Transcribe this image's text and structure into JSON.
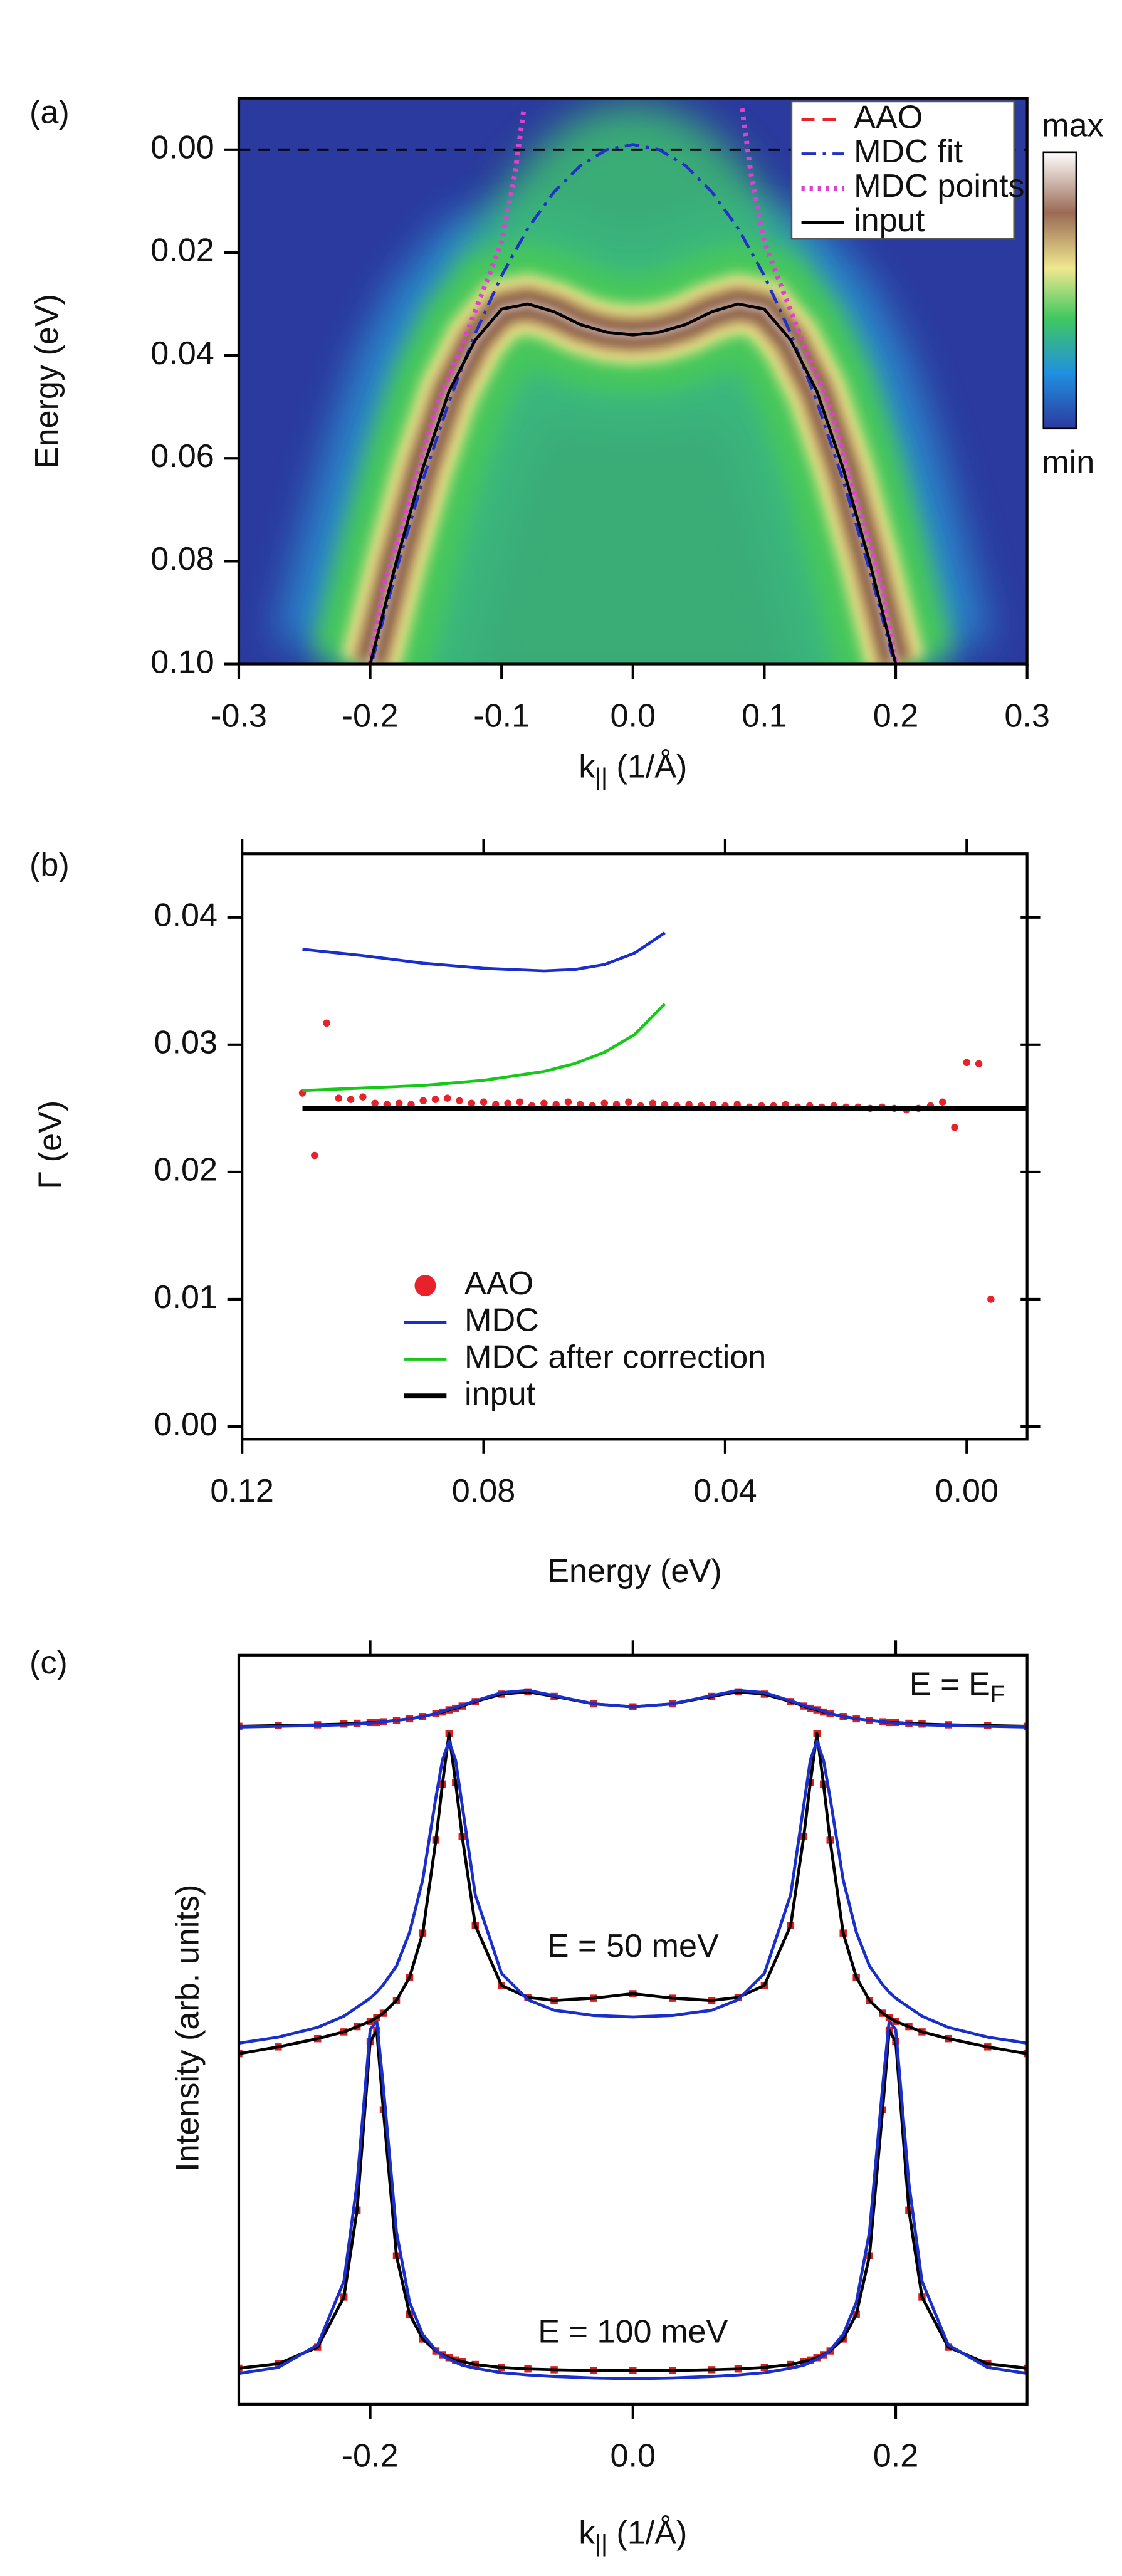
{
  "chart_data": [
    {
      "type": "line",
      "panel_label": "(a)",
      "xlabel": {
        "text": "k",
        "sub": "||",
        "suffix": " (1/Å)"
      },
      "ylabel": "Energy (eV)",
      "xlim": [
        -0.3,
        0.3
      ],
      "xticks": [
        -0.3,
        -0.2,
        -0.1,
        {
          "value": 0,
          "label": "0.0"
        },
        0.1,
        0.2,
        0.3
      ],
      "ylim": [
        0.1,
        -0.01
      ],
      "yticks": [
        {
          "value": 0,
          "label": "0.00"
        },
        0.02,
        0.04,
        0.06,
        0.08,
        {
          "value": 0.1,
          "label": "0.10"
        }
      ],
      "fermi_line": true,
      "heatmap": true,
      "colorbar": {
        "max": "max",
        "min": "min"
      },
      "legend": "upper right",
      "series": [
        {
          "name": "AAO",
          "color": "#e8222a",
          "dash": "dashed",
          "x": [
            -0.2,
            -0.18,
            -0.16,
            -0.14,
            -0.12,
            -0.1,
            -0.08,
            -0.06,
            -0.04,
            -0.02,
            0,
            0.02,
            0.04,
            0.06,
            0.08,
            0.1,
            0.12,
            0.14,
            0.16,
            0.18,
            0.2
          ],
          "values": [
            0.1,
            0.08,
            0.062,
            0.047,
            0.037,
            0.031,
            0.03,
            0.0315,
            0.034,
            0.0355,
            0.036,
            0.0355,
            0.034,
            0.0315,
            0.03,
            0.031,
            0.037,
            0.047,
            0.062,
            0.08,
            0.1
          ]
        },
        {
          "name": "MDC fit",
          "color": "#2030c8",
          "dash": "dashdot",
          "x": [
            -0.198,
            -0.18,
            -0.16,
            -0.14,
            -0.12,
            -0.1,
            -0.08,
            -0.06,
            -0.04,
            -0.02,
            0,
            0.02,
            0.04,
            0.06,
            0.08,
            0.1,
            0.12,
            0.14,
            0.16,
            0.18,
            0.198
          ],
          "values": [
            0.099,
            0.0816,
            0.0643,
            0.049,
            0.0357,
            0.0245,
            0.0153,
            0.0082,
            0.0031,
            0.0,
            -0.001,
            0.0,
            0.0031,
            0.0082,
            0.0153,
            0.0245,
            0.0357,
            0.049,
            0.0643,
            0.0816,
            0.099
          ]
        },
        {
          "name": "MDC points",
          "color": "#e040d0",
          "dash": "dotted",
          "x": [
            -0.2,
            -0.19,
            -0.17,
            -0.15,
            -0.13,
            -0.115,
            -0.1,
            -0.09,
            -0.083,
            null,
            0.083,
            0.09,
            0.1,
            0.115,
            0.13,
            0.15,
            0.17,
            0.19,
            0.2
          ],
          "values": [
            0.1,
            0.085,
            0.068,
            0.05,
            0.038,
            0.028,
            0.018,
            0.005,
            -0.008,
            null,
            -0.008,
            0.005,
            0.018,
            0.028,
            0.038,
            0.05,
            0.068,
            0.085,
            0.1
          ]
        },
        {
          "name": "input",
          "color": "#000000",
          "x": [
            -0.2,
            -0.18,
            -0.16,
            -0.14,
            -0.12,
            -0.1,
            -0.08,
            -0.06,
            -0.04,
            -0.02,
            0,
            0.02,
            0.04,
            0.06,
            0.08,
            0.1,
            0.12,
            0.14,
            0.16,
            0.18,
            0.2
          ],
          "values": [
            0.1,
            0.08,
            0.062,
            0.047,
            0.037,
            0.031,
            0.03,
            0.0315,
            0.034,
            0.0355,
            0.036,
            0.0355,
            0.034,
            0.0315,
            0.03,
            0.031,
            0.037,
            0.047,
            0.062,
            0.08,
            0.1
          ]
        }
      ]
    },
    {
      "type": "line",
      "panel_label": "(b)",
      "xlabel": "Energy (eV)",
      "ylabel": "Γ (eV)",
      "xlim": [
        0.12,
        -0.01
      ],
      "xticks": [
        0.12,
        0.08,
        0.04,
        {
          "value": 0,
          "label": "0.00"
        }
      ],
      "ylim": [
        -0.001,
        0.045
      ],
      "yticks": [
        {
          "value": 0,
          "label": "0.00"
        },
        0.01,
        0.02,
        0.03,
        0.04
      ],
      "legend": "center left",
      "series": [
        {
          "name": "AAO",
          "color": "#e8222a",
          "style": "markers",
          "marker": "circle",
          "x": [
            0.11,
            0.108,
            0.106,
            0.104,
            0.102,
            0.1,
            0.098,
            0.096,
            0.094,
            0.092,
            0.09,
            0.088,
            0.086,
            0.084,
            0.082,
            0.08,
            0.078,
            0.076,
            0.074,
            0.072,
            0.07,
            0.068,
            0.066,
            0.064,
            0.062,
            0.06,
            0.058,
            0.056,
            0.054,
            0.052,
            0.05,
            0.048,
            0.046,
            0.044,
            0.042,
            0.04,
            0.038,
            0.036,
            0.034,
            0.032,
            0.03,
            0.028,
            0.026,
            0.024,
            0.022,
            0.02,
            0.018,
            0.016,
            0.014,
            0.012,
            0.01,
            0.008,
            0.006,
            0.004,
            0.002,
            0.0,
            -0.002,
            -0.004
          ],
          "values": [
            0.0262,
            0.0213,
            0.0317,
            0.0258,
            0.0257,
            0.0259,
            0.0254,
            0.0253,
            0.0254,
            0.0253,
            0.0256,
            0.0257,
            0.0258,
            0.0256,
            0.0254,
            0.0255,
            0.0253,
            0.0254,
            0.0255,
            0.0252,
            0.0254,
            0.0253,
            0.0255,
            0.0253,
            0.0252,
            0.0254,
            0.0253,
            0.0255,
            0.0252,
            0.0254,
            0.0253,
            0.0252,
            0.0253,
            0.0252,
            0.0253,
            0.0252,
            0.0253,
            0.0251,
            0.0252,
            0.0252,
            0.0253,
            0.0251,
            0.0252,
            0.0251,
            0.0252,
            0.0251,
            0.0251,
            0.025,
            0.0251,
            0.025,
            0.0249,
            0.025,
            0.0252,
            0.0255,
            0.0235,
            0.0286,
            0.0285,
            0.01
          ]
        },
        {
          "name": "MDC",
          "color": "#1a2ecc",
          "x": [
            0.11,
            0.1,
            0.09,
            0.08,
            0.07,
            0.065,
            0.06,
            0.055,
            0.05
          ],
          "values": [
            0.0375,
            0.037,
            0.0364,
            0.036,
            0.0358,
            0.0359,
            0.0363,
            0.0372,
            0.0388
          ]
        },
        {
          "name": "MDC after correction",
          "color": "#18c818",
          "x": [
            0.11,
            0.1,
            0.09,
            0.08,
            0.07,
            0.065,
            0.06,
            0.055,
            0.05
          ],
          "values": [
            0.0264,
            0.0266,
            0.0268,
            0.0272,
            0.0279,
            0.0285,
            0.0294,
            0.0308,
            0.0332
          ]
        },
        {
          "name": "input",
          "color": "#000000",
          "width": "thick",
          "x": [
            0.11,
            -0.01
          ],
          "values": [
            0.025,
            0.025
          ]
        }
      ]
    },
    {
      "type": "line",
      "panel_label": "(c)",
      "xlabel": {
        "text": "k",
        "sub": "||",
        "suffix": " (1/Å)"
      },
      "ylabel": "Intensity (arb. units)",
      "xlim": [
        -0.3,
        0.3
      ],
      "xticks": [
        -0.2,
        {
          "value": 0,
          "label": "0.0"
        },
        0.2
      ],
      "ylim": [
        0,
        10
      ],
      "annotations": [
        {
          "text": "E = E",
          "sub": "F"
        },
        {
          "text": "E = 50 meV"
        },
        {
          "text": "E = 100 meV"
        }
      ],
      "x": [
        -0.3,
        -0.27,
        -0.24,
        -0.22,
        -0.21,
        -0.2,
        -0.195,
        -0.19,
        -0.18,
        -0.17,
        -0.16,
        -0.15,
        -0.145,
        -0.14,
        -0.135,
        -0.13,
        -0.12,
        -0.1,
        -0.08,
        -0.06,
        -0.03,
        0,
        0.03,
        0.06,
        0.08,
        0.1,
        0.12,
        0.13,
        0.135,
        0.14,
        0.145,
        0.15,
        0.16,
        0.17,
        0.18,
        0.19,
        0.195,
        0.2,
        0.21,
        0.22,
        0.24,
        0.27,
        0.3
      ],
      "series": [
        {
          "color": "#d62020",
          "style": "markers",
          "marker": "square",
          "values": [
            0.48,
            0.54,
            0.76,
            1.43,
            2.59,
            4.84,
            4.99,
            3.93,
            1.98,
            1.2,
            0.87,
            0.71,
            0.66,
            0.62,
            0.59,
            0.57,
            0.53,
            0.49,
            0.47,
            0.46,
            0.45,
            0.45,
            0.45,
            0.46,
            0.47,
            0.49,
            0.53,
            0.57,
            0.59,
            0.62,
            0.66,
            0.71,
            0.87,
            1.2,
            1.98,
            3.93,
            4.99,
            4.84,
            2.59,
            1.43,
            0.76,
            0.54,
            0.48
          ]
        },
        {
          "color": "#000000",
          "values": [
            0.48,
            0.54,
            0.76,
            1.43,
            2.59,
            4.84,
            4.99,
            3.93,
            1.98,
            1.2,
            0.87,
            0.71,
            0.66,
            0.62,
            0.59,
            0.57,
            0.53,
            0.49,
            0.47,
            0.46,
            0.45,
            0.45,
            0.45,
            0.46,
            0.47,
            0.49,
            0.53,
            0.57,
            0.59,
            0.62,
            0.66,
            0.71,
            0.87,
            1.2,
            1.98,
            3.93,
            4.99,
            4.84,
            2.59,
            1.43,
            0.76,
            0.54,
            0.48
          ]
        },
        {
          "color": "#1a2ecc",
          "values": [
            0.41,
            0.49,
            0.79,
            1.64,
            2.95,
            5.0,
            5.12,
            4.24,
            2.3,
            1.36,
            0.93,
            0.72,
            0.65,
            0.6,
            0.56,
            0.52,
            0.48,
            0.42,
            0.39,
            0.37,
            0.35,
            0.34,
            0.35,
            0.37,
            0.39,
            0.42,
            0.48,
            0.52,
            0.56,
            0.6,
            0.65,
            0.72,
            0.93,
            1.36,
            2.3,
            4.24,
            5.12,
            5.0,
            2.95,
            1.64,
            0.79,
            0.49,
            0.41
          ]
        },
        {
          "color": "#d62020",
          "style": "markers",
          "marker": "square",
          "values": [
            4.68,
            4.77,
            4.88,
            4.97,
            5.04,
            5.11,
            5.16,
            5.22,
            5.39,
            5.7,
            6.29,
            7.53,
            8.28,
            8.95,
            8.3,
            7.58,
            6.39,
            5.59,
            5.43,
            5.39,
            5.42,
            5.48,
            5.42,
            5.39,
            5.43,
            5.59,
            6.39,
            7.58,
            8.3,
            8.95,
            8.28,
            7.53,
            6.29,
            5.7,
            5.39,
            5.22,
            5.16,
            5.11,
            5.04,
            4.97,
            4.88,
            4.77,
            4.68
          ]
        },
        {
          "color": "#000000",
          "values": [
            4.68,
            4.77,
            4.88,
            4.97,
            5.04,
            5.11,
            5.16,
            5.22,
            5.39,
            5.7,
            6.29,
            7.53,
            8.28,
            8.95,
            8.3,
            7.58,
            6.39,
            5.59,
            5.43,
            5.39,
            5.42,
            5.48,
            5.42,
            5.39,
            5.43,
            5.59,
            6.39,
            7.58,
            8.3,
            8.95,
            8.28,
            7.53,
            6.29,
            5.7,
            5.39,
            5.22,
            5.16,
            5.11,
            5.04,
            4.97,
            4.88,
            4.77,
            4.68
          ]
        },
        {
          "color": "#1a2ecc",
          "values": [
            4.82,
            4.9,
            5.03,
            5.18,
            5.3,
            5.42,
            5.5,
            5.6,
            5.85,
            6.3,
            7.0,
            8.1,
            8.6,
            8.85,
            8.6,
            8.0,
            6.8,
            5.75,
            5.4,
            5.26,
            5.19,
            5.17,
            5.19,
            5.26,
            5.4,
            5.75,
            6.8,
            8.0,
            8.6,
            8.85,
            8.6,
            8.1,
            7.0,
            6.3,
            5.85,
            5.6,
            5.5,
            5.42,
            5.3,
            5.18,
            5.03,
            4.9,
            4.82
          ]
        },
        {
          "color": "#d62020",
          "style": "markers",
          "marker": "square",
          "values": [
            9.05,
            9.06,
            9.07,
            9.08,
            9.09,
            9.1,
            9.1,
            9.11,
            9.13,
            9.15,
            9.18,
            9.22,
            9.24,
            9.27,
            9.29,
            9.32,
            9.38,
            9.48,
            9.51,
            9.45,
            9.35,
            9.31,
            9.35,
            9.45,
            9.51,
            9.48,
            9.38,
            9.32,
            9.29,
            9.27,
            9.24,
            9.22,
            9.18,
            9.15,
            9.13,
            9.11,
            9.1,
            9.1,
            9.09,
            9.08,
            9.07,
            9.06,
            9.05
          ]
        },
        {
          "color": "#000000",
          "values": [
            9.05,
            9.06,
            9.07,
            9.08,
            9.09,
            9.1,
            9.1,
            9.11,
            9.13,
            9.15,
            9.18,
            9.22,
            9.24,
            9.27,
            9.29,
            9.32,
            9.38,
            9.48,
            9.51,
            9.45,
            9.35,
            9.31,
            9.35,
            9.45,
            9.51,
            9.48,
            9.38,
            9.32,
            9.29,
            9.27,
            9.24,
            9.22,
            9.18,
            9.15,
            9.13,
            9.11,
            9.1,
            9.1,
            9.09,
            9.08,
            9.07,
            9.06,
            9.05
          ]
        },
        {
          "color": "#1a2ecc",
          "values": [
            9.04,
            9.05,
            9.06,
            9.07,
            9.08,
            9.09,
            9.1,
            9.11,
            9.13,
            9.15,
            9.18,
            9.22,
            9.25,
            9.28,
            9.3,
            9.33,
            9.39,
            9.5,
            9.53,
            9.46,
            9.35,
            9.31,
            9.35,
            9.46,
            9.53,
            9.5,
            9.39,
            9.33,
            9.3,
            9.28,
            9.25,
            9.22,
            9.18,
            9.15,
            9.13,
            9.11,
            9.1,
            9.09,
            9.08,
            9.07,
            9.06,
            9.05,
            9.04
          ]
        }
      ]
    }
  ]
}
